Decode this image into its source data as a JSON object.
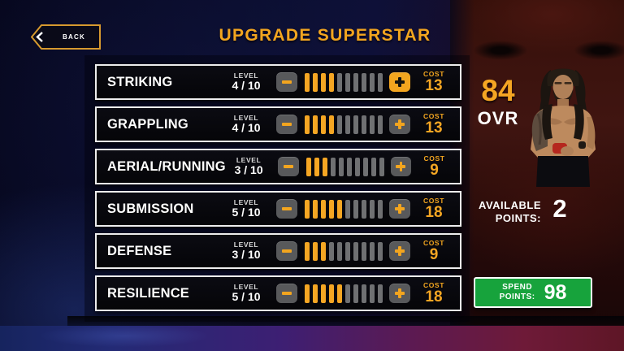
{
  "header": {
    "back_label": "BACK",
    "title": "UPGRADE SUPERSTAR"
  },
  "stats": [
    {
      "name": "STRIKING",
      "level_label": "LEVEL",
      "level": "4 / 10",
      "filled": 4,
      "total": 10,
      "cost_label": "COST",
      "cost": "13",
      "plus_highlighted": true
    },
    {
      "name": "GRAPPLING",
      "level_label": "LEVEL",
      "level": "4 / 10",
      "filled": 4,
      "total": 10,
      "cost_label": "COST",
      "cost": "13",
      "plus_highlighted": false
    },
    {
      "name": "AERIAL/RUNNING",
      "level_label": "LEVEL",
      "level": "3 / 10",
      "filled": 3,
      "total": 10,
      "cost_label": "COST",
      "cost": "9",
      "plus_highlighted": false
    },
    {
      "name": "SUBMISSION",
      "level_label": "LEVEL",
      "level": "5 / 10",
      "filled": 5,
      "total": 10,
      "cost_label": "COST",
      "cost": "18",
      "plus_highlighted": false
    },
    {
      "name": "DEFENSE",
      "level_label": "LEVEL",
      "level": "3 / 10",
      "filled": 3,
      "total": 10,
      "cost_label": "COST",
      "cost": "9",
      "plus_highlighted": false
    },
    {
      "name": "RESILIENCE",
      "level_label": "LEVEL",
      "level": "5 / 10",
      "filled": 5,
      "total": 10,
      "cost_label": "COST",
      "cost": "18",
      "plus_highlighted": false
    }
  ],
  "overall": {
    "value": "84",
    "label": "OVR"
  },
  "available": {
    "label_line1": "AVAILABLE",
    "label_line2": "POINTS:",
    "value": "2"
  },
  "spend": {
    "label_line1": "SPEND",
    "label_line2": "POINTS:",
    "value": "98"
  },
  "colors": {
    "accent_orange": "#F5A623",
    "spend_green": "#17A33C",
    "bar_gray": "#6f7072",
    "button_gray": "#58595b"
  }
}
